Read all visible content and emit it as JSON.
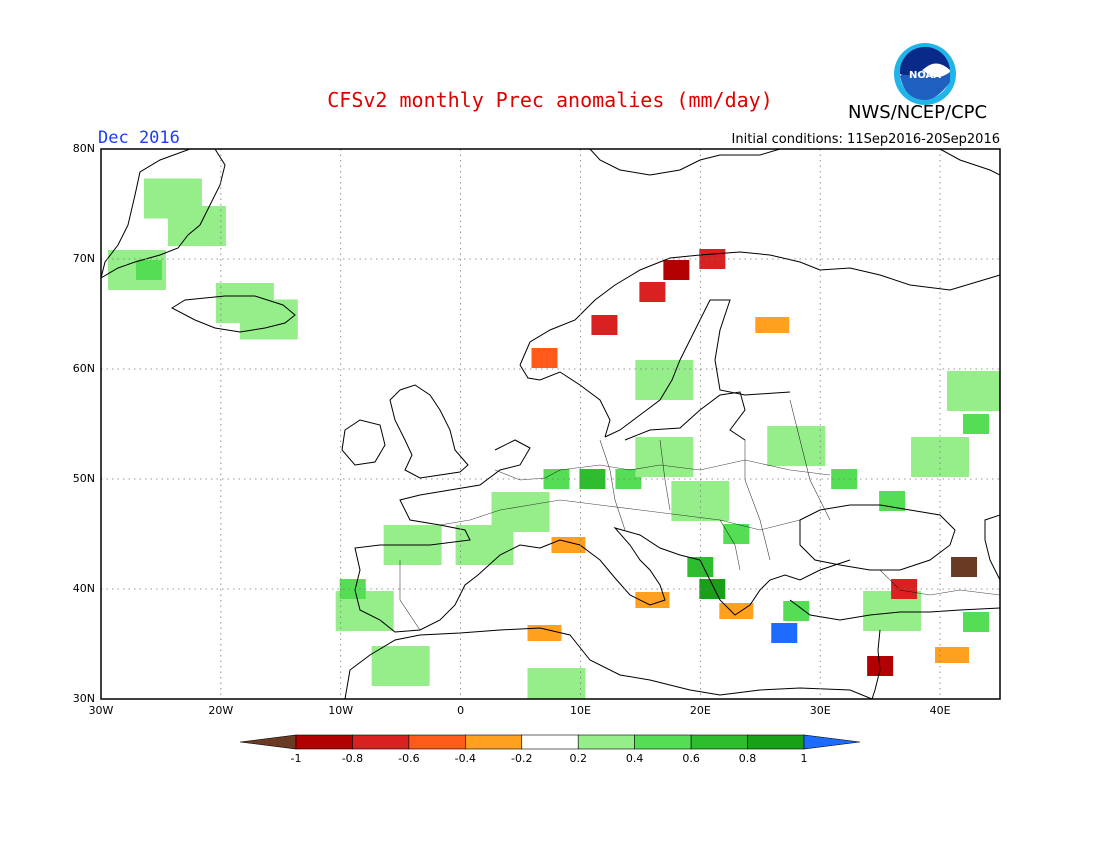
{
  "header": {
    "title": "CFSv2 monthly Prec anomalies (mm/day)",
    "period": "Dec 2016",
    "initial_conditions": "Initial conditions: 11Sep2016-20Sep2016",
    "agency": "NWS/NCEP/CPC",
    "logo_text": "NOAA"
  },
  "map": {
    "region": "Europe",
    "lon_range": [
      -30,
      45
    ],
    "lat_range": [
      30,
      80
    ],
    "lat_labels": [
      "80N",
      "70N",
      "60N",
      "50N",
      "40N",
      "30N"
    ],
    "lon_labels": [
      "30W",
      "20W",
      "10W",
      "0",
      "10E",
      "20E",
      "30E",
      "40E"
    ],
    "grid": "dotted"
  },
  "colorbar": {
    "tick_labels": [
      "-1",
      "-0.8",
      "-0.6",
      "-0.4",
      "-0.2",
      "0.2",
      "0.4",
      "0.6",
      "0.8",
      "1"
    ],
    "colors": [
      "#6b3a22",
      "#b30000",
      "#d92121",
      "#ff5a1a",
      "#ffa01e",
      "#ffffff",
      "#96ee8a",
      "#55dd55",
      "#2ebd2e",
      "#19a019",
      "#1e6cff"
    ]
  },
  "anomalies": {
    "description_free": true,
    "wet": [
      {
        "lon": -24,
        "lat": 75.5,
        "value": 0.3
      },
      {
        "lon": -22,
        "lat": 73,
        "value": 0.3
      },
      {
        "lon": -27,
        "lat": 69,
        "value": 0.3
      },
      {
        "lon": -26,
        "lat": 69,
        "value": 0.5
      },
      {
        "lon": -18,
        "lat": 66,
        "value": 0.3
      },
      {
        "lon": -16,
        "lat": 64.5,
        "value": 0.3
      },
      {
        "lon": -8,
        "lat": 38,
        "value": 0.3
      },
      {
        "lon": -9,
        "lat": 40,
        "value": 0.5
      },
      {
        "lon": -4,
        "lat": 44,
        "value": 0.3
      },
      {
        "lon": 2,
        "lat": 44,
        "value": 0.3
      },
      {
        "lon": 5,
        "lat": 47,
        "value": 0.3
      },
      {
        "lon": 8,
        "lat": 50,
        "value": 0.5
      },
      {
        "lon": 11,
        "lat": 50,
        "value": 0.7
      },
      {
        "lon": 14,
        "lat": 50,
        "value": 0.5
      },
      {
        "lon": 17,
        "lat": 52,
        "value": 0.3
      },
      {
        "lon": 20,
        "lat": 48,
        "value": 0.3
      },
      {
        "lon": 23,
        "lat": 45,
        "value": 0.5
      },
      {
        "lon": 20,
        "lat": 42,
        "value": 0.7
      },
      {
        "lon": 21,
        "lat": 40,
        "value": 0.9
      },
      {
        "lon": 28,
        "lat": 53,
        "value": 0.3
      },
      {
        "lon": 32,
        "lat": 50,
        "value": 0.5
      },
      {
        "lon": 36,
        "lat": 48,
        "value": 0.5
      },
      {
        "lon": 40,
        "lat": 52,
        "value": 0.3
      },
      {
        "lon": 43,
        "lat": 55,
        "value": 0.5
      },
      {
        "lon": 43,
        "lat": 58,
        "value": 0.3
      },
      {
        "lon": 28,
        "lat": 38,
        "value": 0.5
      },
      {
        "lon": 36,
        "lat": 38,
        "value": 0.3
      },
      {
        "lon": 43,
        "lat": 37,
        "value": 0.5
      },
      {
        "lon": -5,
        "lat": 33,
        "value": 0.3
      },
      {
        "lon": 8,
        "lat": 31,
        "value": 0.3
      },
      {
        "lon": 17,
        "lat": 59,
        "value": 0.3
      },
      {
        "lon": 27,
        "lat": 36,
        "value": 1.1
      }
    ],
    "dry": [
      {
        "lon": 16,
        "lat": 67,
        "value": -0.6
      },
      {
        "lon": 18,
        "lat": 69,
        "value": -0.8
      },
      {
        "lon": 21,
        "lat": 70,
        "value": -0.7
      },
      {
        "lon": 12,
        "lat": 64,
        "value": -0.6
      },
      {
        "lon": 7,
        "lat": 61,
        "value": -0.4
      },
      {
        "lon": 26,
        "lat": 64,
        "value": -0.3
      },
      {
        "lon": 9,
        "lat": 44,
        "value": -0.3
      },
      {
        "lon": 7,
        "lat": 36,
        "value": -0.3
      },
      {
        "lon": 23,
        "lat": 38,
        "value": -0.3
      },
      {
        "lon": 37,
        "lat": 40,
        "value": -0.7
      },
      {
        "lon": 42,
        "lat": 42,
        "value": -1.1
      },
      {
        "lon": 35,
        "lat": 33,
        "value": -0.8
      },
      {
        "lon": 41,
        "lat": 34,
        "value": -0.3
      },
      {
        "lon": 16,
        "lat": 39,
        "value": -0.3
      }
    ]
  }
}
